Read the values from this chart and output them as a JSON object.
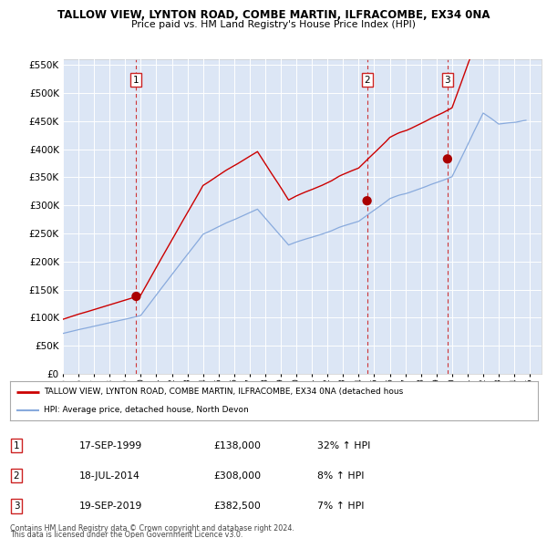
{
  "title": "TALLOW VIEW, LYNTON ROAD, COMBE MARTIN, ILFRACOMBE, EX34 0NA",
  "subtitle": "Price paid vs. HM Land Registry's House Price Index (HPI)",
  "ylim": [
    0,
    560000
  ],
  "xlim_start": 1995.0,
  "xlim_end": 2025.75,
  "sale_events": [
    {
      "label": "1",
      "date": "17-SEP-1999",
      "price": 138000,
      "pct": "32%",
      "dir": "↑",
      "x_year": 1999.71
    },
    {
      "label": "2",
      "date": "18-JUL-2014",
      "price": 308000,
      "pct": "8%",
      "dir": "↑",
      "x_year": 2014.54
    },
    {
      "label": "3",
      "date": "19-SEP-2019",
      "price": 382500,
      "pct": "7%",
      "dir": "↑",
      "x_year": 2019.71
    }
  ],
  "legend_entries": [
    {
      "label": "TALLOW VIEW, LYNTON ROAD, COMBE MARTIN, ILFRACOMBE, EX34 0NA (detached hous",
      "color": "#cc0000",
      "lw": 1.8
    },
    {
      "label": "HPI: Average price, detached house, North Devon",
      "color": "#88aadd",
      "lw": 1.2
    }
  ],
  "footer_line1": "Contains HM Land Registry data © Crown copyright and database right 2024.",
  "footer_line2": "This data is licensed under the Open Government Licence v3.0.",
  "plot_bg_color": "#dce6f5",
  "grid_color": "#ffffff",
  "red_line_color": "#cc0000",
  "blue_line_color": "#88aadd",
  "sale_dot_color": "#aa0000",
  "vline_color": "#cc2222"
}
